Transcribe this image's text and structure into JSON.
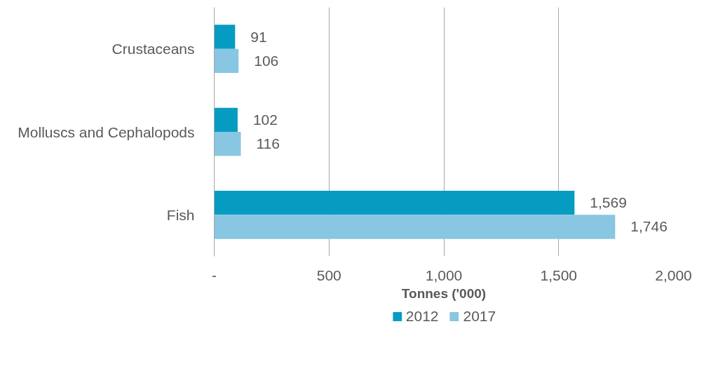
{
  "chart_data": {
    "type": "bar",
    "orientation": "horizontal",
    "xlabel": "Tonnes ('000)",
    "categories": [
      "Crustaceans",
      "Molluscs and Cephalopods",
      "Fish"
    ],
    "series": [
      {
        "name": "2012",
        "color": "#069cc2",
        "values": [
          91,
          102,
          1569
        ],
        "value_labels": [
          "91",
          "102",
          "1,569"
        ]
      },
      {
        "name": "2017",
        "color": "#88c6e2",
        "values": [
          106,
          116,
          1746
        ],
        "value_labels": [
          "106",
          "116",
          "1,746"
        ]
      }
    ],
    "xlim": [
      0,
      2000
    ],
    "xticks": [
      {
        "value": 0,
        "label": "-"
      },
      500,
      {
        "value": 1000,
        "label": "1,000"
      },
      {
        "value": 1500,
        "label": "1,500"
      },
      {
        "value": 2000,
        "label": "2,000"
      }
    ],
    "grid": "x",
    "legend": "bottom"
  }
}
